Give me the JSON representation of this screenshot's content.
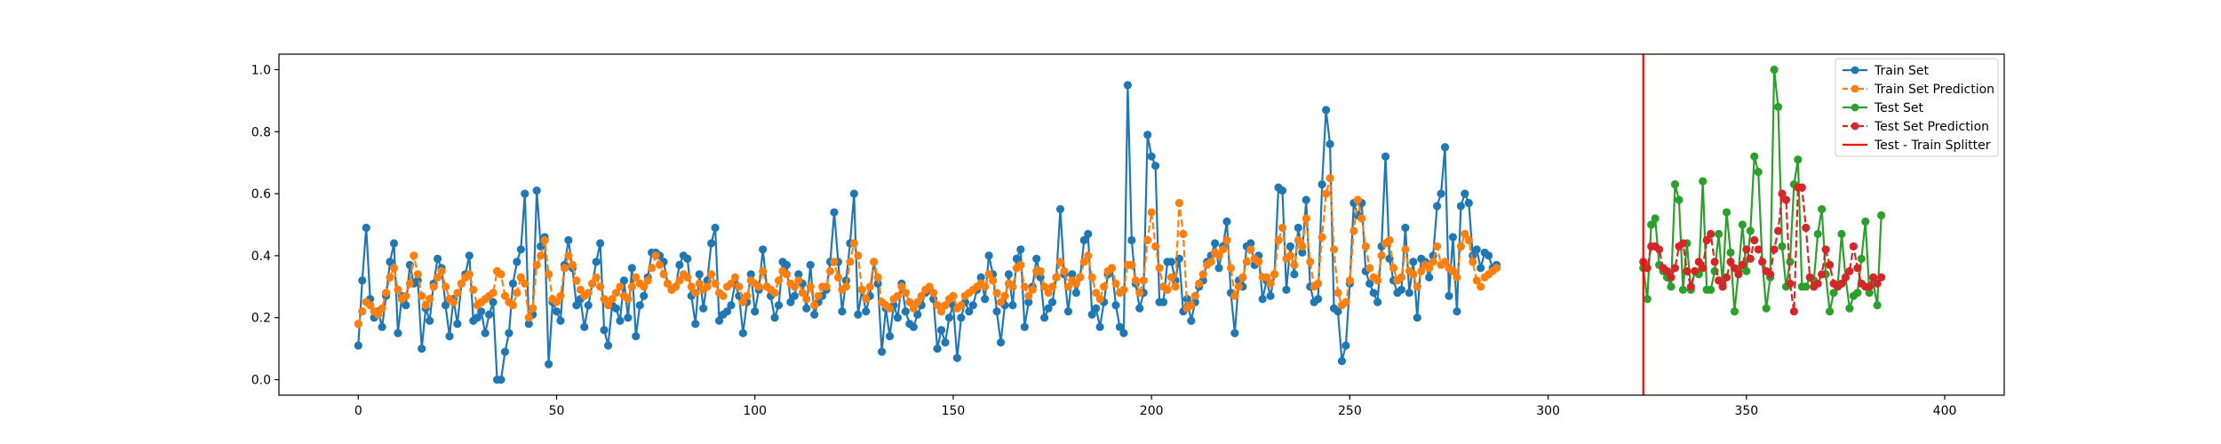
{
  "chart_data": {
    "type": "line",
    "title": "",
    "xlabel": "",
    "ylabel": "",
    "xlim": [
      -20,
      415
    ],
    "ylim": [
      -0.05,
      1.05
    ],
    "xticks": [
      0,
      50,
      100,
      150,
      200,
      250,
      300,
      350,
      400
    ],
    "yticks": [
      0.0,
      0.2,
      0.4,
      0.6,
      0.8,
      1.0
    ],
    "xtick_labels": [
      "0",
      "50",
      "100",
      "150",
      "200",
      "250",
      "300",
      "350",
      "400"
    ],
    "ytick_labels": [
      "0.0",
      "0.2",
      "0.4",
      "0.6",
      "0.8",
      "1.0"
    ],
    "grid": false,
    "legend_position": "top-right",
    "splitter_x": 324,
    "series": [
      {
        "name": "Train Set",
        "color": "#1f77b4",
        "linestyle": "solid",
        "x_start": 0,
        "values": [
          0.11,
          0.32,
          0.49,
          0.26,
          0.2,
          0.22,
          0.17,
          0.27,
          0.38,
          0.44,
          0.15,
          0.27,
          0.24,
          0.37,
          0.31,
          0.32,
          0.1,
          0.23,
          0.19,
          0.31,
          0.39,
          0.36,
          0.24,
          0.14,
          0.26,
          0.18,
          0.31,
          0.34,
          0.4,
          0.19,
          0.2,
          0.22,
          0.15,
          0.21,
          0.25,
          0.0,
          0.0,
          0.09,
          0.15,
          0.31,
          0.38,
          0.42,
          0.6,
          0.18,
          0.21,
          0.61,
          0.43,
          0.46,
          0.05,
          0.25,
          0.22,
          0.19,
          0.37,
          0.45,
          0.36,
          0.24,
          0.26,
          0.17,
          0.24,
          0.31,
          0.38,
          0.44,
          0.16,
          0.11,
          0.24,
          0.23,
          0.19,
          0.32,
          0.2,
          0.36,
          0.14,
          0.24,
          0.27,
          0.33,
          0.41,
          0.41,
          0.4,
          0.38,
          0.31,
          0.29,
          0.3,
          0.37,
          0.4,
          0.39,
          0.27,
          0.18,
          0.34,
          0.23,
          0.32,
          0.44,
          0.49,
          0.19,
          0.21,
          0.22,
          0.24,
          0.31,
          0.27,
          0.15,
          0.25,
          0.34,
          0.22,
          0.29,
          0.42,
          0.3,
          0.27,
          0.2,
          0.24,
          0.38,
          0.37,
          0.25,
          0.27,
          0.34,
          0.31,
          0.23,
          0.37,
          0.21,
          0.25,
          0.27,
          0.29,
          0.38,
          0.54,
          0.38,
          0.22,
          0.32,
          0.44,
          0.6,
          0.21,
          0.29,
          0.22,
          0.27,
          0.38,
          0.31,
          0.09,
          0.23,
          0.14,
          0.24,
          0.2,
          0.31,
          0.22,
          0.18,
          0.17,
          0.21,
          0.24,
          0.28,
          0.29,
          0.26,
          0.1,
          0.16,
          0.12,
          0.2,
          0.24,
          0.07,
          0.2,
          0.25,
          0.22,
          0.24,
          0.29,
          0.33,
          0.26,
          0.4,
          0.34,
          0.22,
          0.12,
          0.24,
          0.34,
          0.24,
          0.39,
          0.42,
          0.17,
          0.25,
          0.3,
          0.39,
          0.33,
          0.2,
          0.23,
          0.25,
          0.33,
          0.55,
          0.34,
          0.22,
          0.34,
          0.28,
          0.33,
          0.45,
          0.47,
          0.21,
          0.23,
          0.17,
          0.25,
          0.34,
          0.36,
          0.24,
          0.17,
          0.15,
          0.95,
          0.45,
          0.31,
          0.23,
          0.28,
          0.79,
          0.72,
          0.69,
          0.25,
          0.25,
          0.38,
          0.38,
          0.32,
          0.39,
          0.22,
          0.26,
          0.19,
          0.25,
          0.3,
          0.32,
          0.38,
          0.4,
          0.44,
          0.36,
          0.43,
          0.51,
          0.28,
          0.15,
          0.32,
          0.3,
          0.43,
          0.44,
          0.37,
          0.4,
          0.26,
          0.32,
          0.27,
          0.34,
          0.62,
          0.61,
          0.29,
          0.43,
          0.34,
          0.49,
          0.41,
          0.58,
          0.3,
          0.25,
          0.26,
          0.63,
          0.87,
          0.76,
          0.23,
          0.22,
          0.06,
          0.11,
          0.31,
          0.57,
          0.53,
          0.57,
          0.35,
          0.31,
          0.28,
          0.25,
          0.43,
          0.72,
          0.39,
          0.32,
          0.28,
          0.29,
          0.49,
          0.28,
          0.38,
          0.2,
          0.39,
          0.38,
          0.33,
          0.4,
          0.56,
          0.6,
          0.75,
          0.27,
          0.46,
          0.22,
          0.56,
          0.6,
          0.57,
          0.4,
          0.42,
          0.36,
          0.41,
          0.4,
          0.36,
          0.37
        ]
      },
      {
        "name": "Train Set Prediction",
        "color": "#ff7f0e",
        "linestyle": "dashed",
        "x_start": 0,
        "values": [
          0.18,
          0.22,
          0.25,
          0.24,
          0.22,
          0.21,
          0.23,
          0.28,
          0.33,
          0.36,
          0.29,
          0.26,
          0.27,
          0.31,
          0.4,
          0.34,
          0.27,
          0.24,
          0.26,
          0.3,
          0.33,
          0.35,
          0.3,
          0.26,
          0.25,
          0.28,
          0.31,
          0.33,
          0.34,
          0.29,
          0.24,
          0.25,
          0.26,
          0.27,
          0.28,
          0.35,
          0.34,
          0.27,
          0.25,
          0.24,
          0.28,
          0.33,
          0.31,
          0.2,
          0.23,
          0.37,
          0.4,
          0.45,
          0.34,
          0.26,
          0.25,
          0.27,
          0.36,
          0.4,
          0.37,
          0.32,
          0.29,
          0.27,
          0.28,
          0.31,
          0.33,
          0.3,
          0.26,
          0.24,
          0.26,
          0.28,
          0.3,
          0.27,
          0.26,
          0.3,
          0.33,
          0.31,
          0.3,
          0.32,
          0.36,
          0.4,
          0.37,
          0.34,
          0.31,
          0.29,
          0.3,
          0.32,
          0.34,
          0.33,
          0.3,
          0.28,
          0.31,
          0.29,
          0.3,
          0.34,
          0.31,
          0.28,
          0.27,
          0.3,
          0.31,
          0.33,
          0.3,
          0.25,
          0.27,
          0.32,
          0.31,
          0.3,
          0.35,
          0.3,
          0.29,
          0.28,
          0.32,
          0.35,
          0.34,
          0.31,
          0.3,
          0.32,
          0.28,
          0.26,
          0.3,
          0.24,
          0.27,
          0.3,
          0.3,
          0.35,
          0.38,
          0.33,
          0.29,
          0.3,
          0.38,
          0.44,
          0.4,
          0.29,
          0.26,
          0.3,
          0.38,
          0.33,
          0.25,
          0.24,
          0.23,
          0.26,
          0.27,
          0.3,
          0.28,
          0.25,
          0.23,
          0.25,
          0.27,
          0.29,
          0.3,
          0.28,
          0.24,
          0.22,
          0.24,
          0.26,
          0.27,
          0.23,
          0.24,
          0.27,
          0.28,
          0.29,
          0.3,
          0.31,
          0.3,
          0.34,
          0.32,
          0.28,
          0.25,
          0.27,
          0.31,
          0.3,
          0.36,
          0.37,
          0.3,
          0.27,
          0.29,
          0.35,
          0.35,
          0.3,
          0.28,
          0.3,
          0.33,
          0.38,
          0.35,
          0.3,
          0.32,
          0.31,
          0.33,
          0.38,
          0.4,
          0.33,
          0.28,
          0.26,
          0.3,
          0.35,
          0.36,
          0.31,
          0.28,
          0.29,
          0.37,
          0.37,
          0.32,
          0.28,
          0.32,
          0.45,
          0.54,
          0.43,
          0.36,
          0.3,
          0.29,
          0.33,
          0.3,
          0.57,
          0.47,
          0.23,
          0.24,
          0.27,
          0.31,
          0.34,
          0.37,
          0.38,
          0.41,
          0.4,
          0.42,
          0.45,
          0.36,
          0.27,
          0.3,
          0.33,
          0.38,
          0.42,
          0.39,
          0.38,
          0.33,
          0.33,
          0.31,
          0.34,
          0.45,
          0.49,
          0.39,
          0.4,
          0.37,
          0.45,
          0.43,
          0.52,
          0.38,
          0.3,
          0.31,
          0.46,
          0.6,
          0.65,
          0.42,
          0.28,
          0.24,
          0.25,
          0.32,
          0.48,
          0.58,
          0.52,
          0.43,
          0.36,
          0.33,
          0.32,
          0.4,
          0.44,
          0.45,
          0.36,
          0.32,
          0.33,
          0.42,
          0.35,
          0.34,
          0.3,
          0.35,
          0.37,
          0.36,
          0.38,
          0.43,
          0.37,
          0.38,
          0.36,
          0.35,
          0.33,
          0.43,
          0.47,
          0.45,
          0.38,
          0.32,
          0.3,
          0.33,
          0.34,
          0.35,
          0.36
        ]
      },
      {
        "name": "Test Set",
        "color": "#2ca02c",
        "linestyle": "solid",
        "x_start": 324,
        "values": [
          0.36,
          0.26,
          0.5,
          0.52,
          0.37,
          0.35,
          0.33,
          0.3,
          0.63,
          0.58,
          0.29,
          0.44,
          0.29,
          0.35,
          0.34,
          0.64,
          0.29,
          0.29,
          0.35,
          0.47,
          0.31,
          0.54,
          0.41,
          0.22,
          0.35,
          0.5,
          0.35,
          0.48,
          0.72,
          0.67,
          0.38,
          0.23,
          0.33,
          1.0,
          0.88,
          0.43,
          0.3,
          0.38,
          0.63,
          0.71,
          0.3,
          0.3,
          0.33,
          0.32,
          0.47,
          0.55,
          0.34,
          0.22,
          0.28,
          0.3,
          0.47,
          0.33,
          0.23,
          0.27,
          0.28,
          0.39,
          0.51,
          0.28,
          0.31,
          0.24,
          0.53
        ]
      },
      {
        "name": "Test Set Prediction",
        "color": "#d62728",
        "linestyle": "dashed",
        "x_start": 324,
        "values": [
          0.38,
          0.36,
          0.43,
          0.43,
          0.42,
          0.36,
          0.35,
          0.33,
          0.36,
          0.43,
          0.44,
          0.35,
          0.3,
          0.35,
          0.38,
          0.36,
          0.45,
          0.47,
          0.38,
          0.32,
          0.3,
          0.33,
          0.38,
          0.36,
          0.34,
          0.37,
          0.42,
          0.39,
          0.45,
          0.42,
          0.38,
          0.35,
          0.34,
          0.42,
          0.48,
          0.6,
          0.58,
          0.31,
          0.22,
          0.62,
          0.62,
          0.49,
          0.33,
          0.3,
          0.31,
          0.34,
          0.42,
          0.37,
          0.31,
          0.3,
          0.31,
          0.33,
          0.35,
          0.43,
          0.36,
          0.31,
          0.3,
          0.3,
          0.33,
          0.31,
          0.33
        ]
      }
    ],
    "legend": [
      {
        "label": "Train Set",
        "color": "#1f77b4",
        "linestyle": "solid",
        "marker": "circle"
      },
      {
        "label": "Train Set Prediction",
        "color": "#ff7f0e",
        "linestyle": "dashed",
        "marker": "circle"
      },
      {
        "label": "Test Set",
        "color": "#2ca02c",
        "linestyle": "solid",
        "marker": "circle"
      },
      {
        "label": "Test Set Prediction",
        "color": "#d62728",
        "linestyle": "dashed",
        "marker": "circle"
      },
      {
        "label": "Test - Train Splitter",
        "color": "#ff0000",
        "linestyle": "solid",
        "marker": "none"
      }
    ]
  }
}
